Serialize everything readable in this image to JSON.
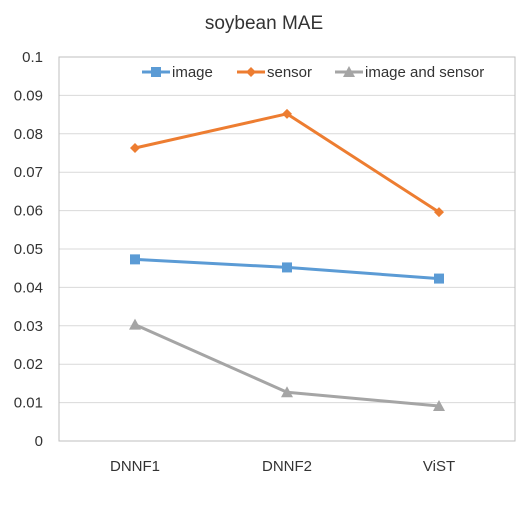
{
  "chart_data": {
    "type": "line",
    "title": "soybean MAE",
    "xlabel": "",
    "ylabel": "",
    "categories": [
      "DNNF1",
      "DNNF2",
      "ViST"
    ],
    "ylim": [
      0,
      0.1
    ],
    "yticks": [
      0,
      0.01,
      0.02,
      0.03,
      0.04,
      0.05,
      0.06,
      0.07,
      0.08,
      0.09,
      0.1
    ],
    "ytick_labels": [
      "0",
      "0.01",
      "0.02",
      "0.03",
      "0.04",
      "0.05",
      "0.06",
      "0.07",
      "0.08",
      "0.09",
      "0.1"
    ],
    "grid": true,
    "legend_position": "top-right",
    "series": [
      {
        "name": "image",
        "values": [
          0.0473,
          0.0452,
          0.0423
        ],
        "color": "#5B9BD5",
        "marker": "square"
      },
      {
        "name": "sensor",
        "values": [
          0.0763,
          0.0852,
          0.0596
        ],
        "color": "#ED7D31",
        "marker": "diamond"
      },
      {
        "name": "image and sensor",
        "values": [
          0.0303,
          0.0127,
          0.0091
        ],
        "color": "#A5A5A5",
        "marker": "triangle"
      }
    ]
  }
}
